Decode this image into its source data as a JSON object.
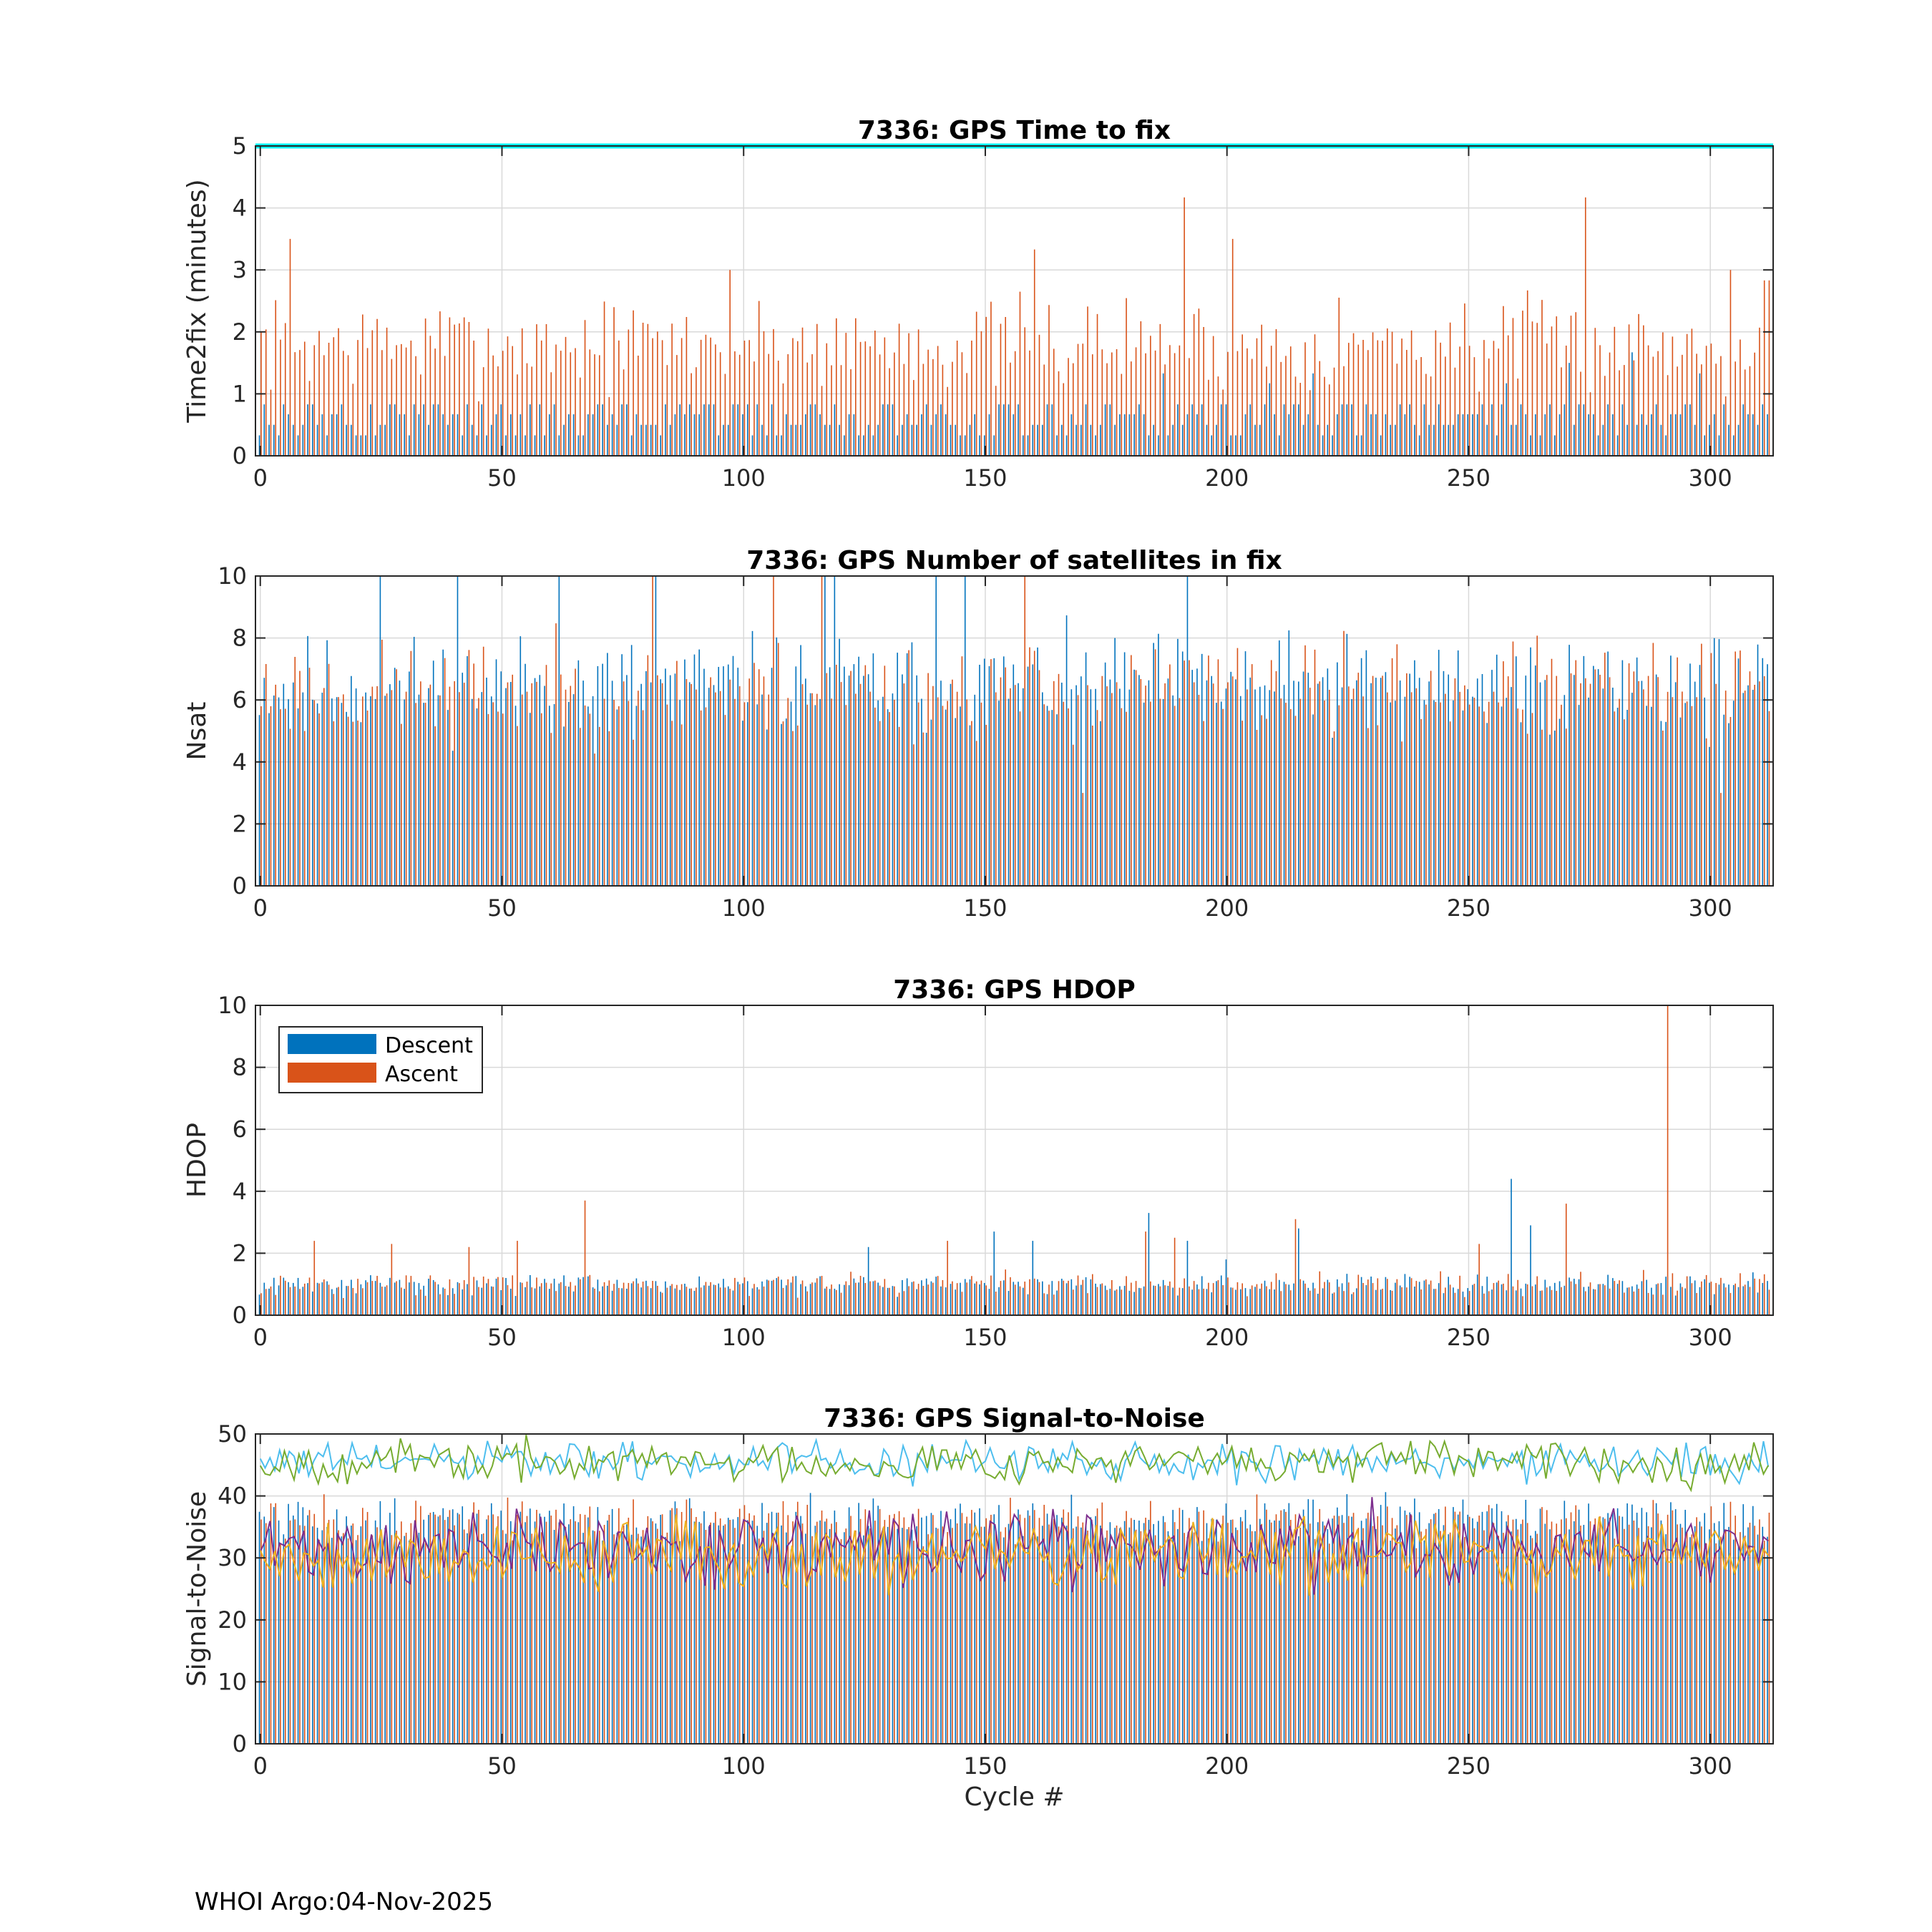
{
  "footer": "WHOI Argo:04-Nov-2025",
  "legend": {
    "descent": "Descent",
    "ascent": "Ascent"
  },
  "colors": {
    "descent": "#0072BD",
    "ascent": "#D95319",
    "limit": "#00FFFF",
    "snr": [
      "#4DBEEE",
      "#77AC30",
      "#7E2F8E",
      "#EDB120",
      "#D95319"
    ],
    "grid": "#d9d9d9"
  },
  "chart_data": [
    {
      "type": "bar",
      "id": "ttf",
      "title": "7336: GPS Time to fix",
      "xlabel": "",
      "ylabel": "Time2fix (minutes)",
      "xlim": [
        -1,
        313
      ],
      "ylim": [
        0,
        5
      ],
      "xticks": [
        0,
        50,
        100,
        150,
        200,
        250,
        300
      ],
      "yticks": [
        0,
        1,
        2,
        3,
        4,
        5
      ],
      "limit_line": 5,
      "series": [
        {
          "name": "Descent",
          "color": "descent",
          "base": 0.5,
          "spread": 0.4,
          "levels": [
            0.33,
            0.83,
            0.5,
            0.67
          ],
          "spikes": {
            "37": 0.83,
            "131": 0.83,
            "187": 1.33,
            "209": 1.17,
            "218": 1.33,
            "258": 1.17,
            "271": 1.5,
            "284": 1.67,
            "298": 1.33
          }
        },
        {
          "name": "Ascent",
          "color": "ascent",
          "base": 1.8,
          "spread": 0.6,
          "seed": 7,
          "spikes": {
            "6": 3.5,
            "97": 3.0,
            "160": 3.33,
            "191": 4.17,
            "201": 3.5,
            "274": 4.17,
            "304": 3.0,
            "311": 2.83,
            "312": 2.83
          }
        }
      ]
    },
    {
      "type": "bar",
      "id": "nsat",
      "title": "7336: GPS Number of satellites in fix",
      "xlabel": "",
      "ylabel": "Nsat",
      "xlim": [
        -1,
        313
      ],
      "ylim": [
        0,
        10
      ],
      "xticks": [
        0,
        50,
        100,
        150,
        200,
        250,
        300
      ],
      "yticks": [
        0,
        2,
        4,
        6,
        8,
        10
      ],
      "series": [
        {
          "name": "Descent",
          "color": "descent",
          "base": 6.5,
          "spread": 1.3,
          "seed": 11,
          "spikes": {
            "25": 10,
            "41": 10,
            "62": 10,
            "82": 10,
            "117": 10,
            "119": 10,
            "140": 10,
            "146": 10,
            "192": 10
          }
        },
        {
          "name": "Ascent",
          "color": "ascent",
          "base": 6.3,
          "spread": 1.3,
          "seed": 23,
          "spikes": {
            "81": 10,
            "106": 10,
            "116": 10,
            "158": 10,
            "302": 3,
            "170": 3
          }
        }
      ]
    },
    {
      "type": "bar",
      "id": "hdop",
      "title": "7336: GPS HDOP",
      "xlabel": "",
      "ylabel": "HDOP",
      "xlim": [
        -1,
        313
      ],
      "ylim": [
        0,
        10
      ],
      "xticks": [
        0,
        50,
        100,
        150,
        200,
        250,
        300
      ],
      "yticks": [
        0,
        2,
        4,
        6,
        8,
        10
      ],
      "legend_position": "top-left",
      "series": [
        {
          "name": "Descent",
          "color": "descent",
          "base": 1.0,
          "spread": 0.25,
          "seed": 31,
          "spikes": {
            "126": 2.2,
            "152": 2.7,
            "160": 2.4,
            "184": 3.3,
            "192": 2.4,
            "200": 1.8,
            "215": 2.8,
            "259": 4.4,
            "263": 2.9
          }
        },
        {
          "name": "Ascent",
          "color": "ascent",
          "base": 1.0,
          "spread": 0.3,
          "seed": 43,
          "spikes": {
            "11": 2.4,
            "27": 2.3,
            "43": 2.2,
            "53": 2.4,
            "67": 3.7,
            "142": 2.4,
            "183": 2.7,
            "189": 2.5,
            "214": 3.1,
            "252": 2.3,
            "270": 3.6,
            "291": 10.0
          }
        }
      ]
    },
    {
      "type": "bar+line",
      "id": "snr",
      "title": "7336: GPS Signal-to-Noise",
      "xlabel": "Cycle #",
      "ylabel": "Signal-to-Noise",
      "xlim": [
        -1,
        313
      ],
      "ylim": [
        0,
        50
      ],
      "xticks": [
        0,
        50,
        100,
        150,
        200,
        250,
        300
      ],
      "yticks": [
        0,
        10,
        20,
        30,
        40,
        50
      ],
      "series": [
        {
          "name": "Descent",
          "color": "descent",
          "base": 36,
          "spread": 3,
          "seed": 51,
          "spikes": {}
        },
        {
          "name": "Ascent",
          "color": "ascent",
          "base": 36,
          "spread": 3,
          "seed": 57,
          "spikes": {}
        }
      ],
      "lines": [
        {
          "color": 0,
          "base": 45.5,
          "spread": 2.5,
          "seed": 61
        },
        {
          "color": 1,
          "base": 45.5,
          "spread": 2.5,
          "seed": 67
        },
        {
          "color": 2,
          "base": 31.5,
          "spread": 4.5,
          "seed": 71
        },
        {
          "color": 3,
          "base": 30.5,
          "spread": 4.5,
          "seed": 79
        }
      ]
    }
  ]
}
